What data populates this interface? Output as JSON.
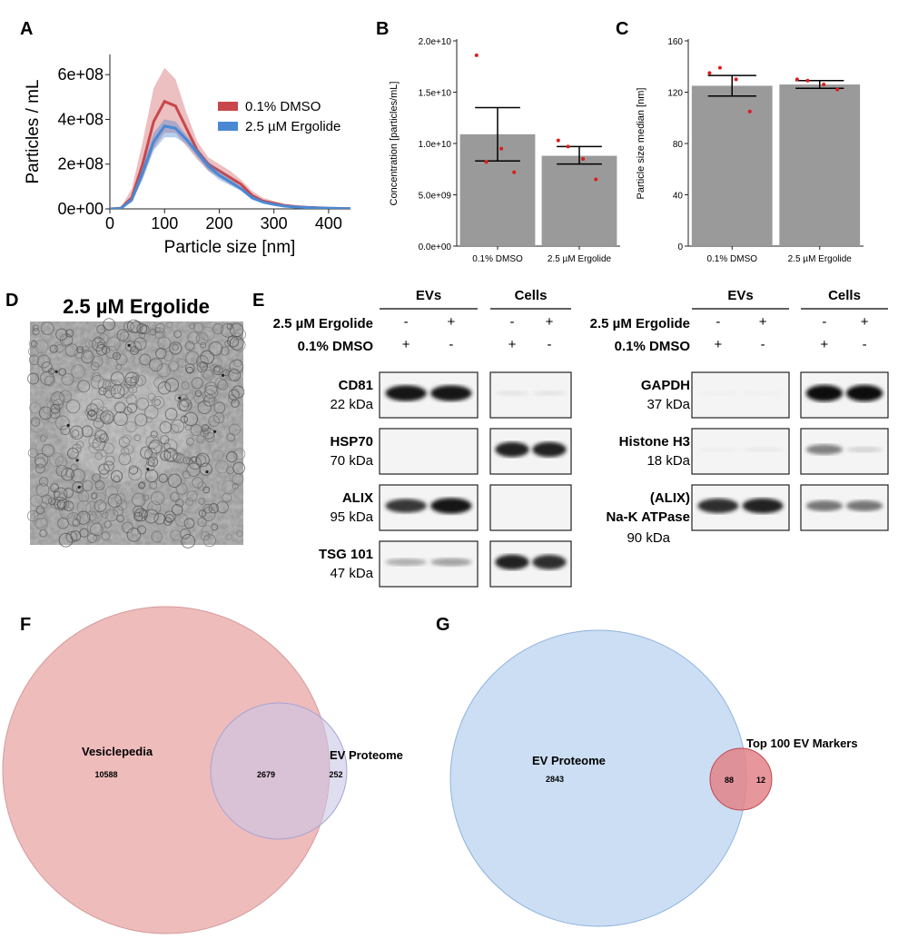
{
  "panels": {
    "A": {
      "letter": "A"
    },
    "B": {
      "letter": "B"
    },
    "C": {
      "letter": "C"
    },
    "D": {
      "letter": "D",
      "title": "2.5 µM Ergolide"
    },
    "E": {
      "letter": "E"
    },
    "F": {
      "letter": "F"
    },
    "G": {
      "letter": "G"
    }
  },
  "colors": {
    "dmso": "#c8474b",
    "ergolide": "#4a88d4",
    "bar": "#9a9a9a",
    "dot": "#e01b1b",
    "venn_vesiclepedia": "#eaa5a5",
    "venn_ev_proteome_f": "#c9c6e6",
    "venn_ev_proteome_g": "#a9c8ec",
    "venn_top100": "#e3848a"
  },
  "chart_data": [
    {
      "id": "A",
      "type": "line",
      "xlabel": "Particle size [nm]",
      "ylabel": "Particles / mL",
      "xlim": [
        0,
        440
      ],
      "ylim": [
        0,
        690000000.0
      ],
      "xticks": [
        0,
        100,
        200,
        300,
        400
      ],
      "yticks": [
        0,
        200000000.0,
        400000000.0,
        600000000.0
      ],
      "ytick_labels": [
        "0e+00",
        "2e+08",
        "4e+08",
        "6e+08"
      ],
      "legend_position": "top-right",
      "series": [
        {
          "name": "0.1% DMSO",
          "color_key": "dmso",
          "x": [
            0,
            20,
            40,
            60,
            80,
            100,
            120,
            140,
            160,
            180,
            200,
            220,
            240,
            260,
            280,
            300,
            320,
            340,
            360,
            380,
            400,
            420,
            440
          ],
          "y": [
            0,
            3000000.0,
            50000000.0,
            200000000.0,
            390000000.0,
            480000000.0,
            460000000.0,
            360000000.0,
            260000000.0,
            200000000.0,
            170000000.0,
            140000000.0,
            110000000.0,
            60000000.0,
            35000000.0,
            25000000.0,
            15000000.0,
            10000000.0,
            7000000.0,
            5000000.0,
            3000000.0,
            2000000.0,
            1000000.0
          ],
          "upper": [
            0,
            5000000.0,
            90000000.0,
            300000000.0,
            540000000.0,
            630000000.0,
            580000000.0,
            430000000.0,
            300000000.0,
            230000000.0,
            200000000.0,
            170000000.0,
            130000000.0,
            80000000.0,
            50000000.0,
            35000000.0,
            22000000.0,
            15000000.0,
            10000000.0,
            7000000.0,
            5000000.0,
            3000000.0,
            2000000.0
          ],
          "lower": [
            0,
            1000000.0,
            30000000.0,
            140000000.0,
            270000000.0,
            340000000.0,
            340000000.0,
            280000000.0,
            220000000.0,
            170000000.0,
            140000000.0,
            110000000.0,
            90000000.0,
            45000000.0,
            25000000.0,
            17000000.0,
            10000000.0,
            6000000.0,
            4000000.0,
            3000000.0,
            2000000.0,
            1000000.0,
            0
          ]
        },
        {
          "name": "2.5 µM Ergolide",
          "color_key": "ergolide",
          "x": [
            0,
            20,
            40,
            60,
            80,
            100,
            120,
            140,
            160,
            180,
            200,
            220,
            240,
            260,
            280,
            300,
            320,
            340,
            360,
            380,
            400,
            420,
            440
          ],
          "y": [
            0,
            2000000.0,
            40000000.0,
            160000000.0,
            300000000.0,
            370000000.0,
            360000000.0,
            310000000.0,
            250000000.0,
            190000000.0,
            150000000.0,
            120000000.0,
            90000000.0,
            50000000.0,
            30000000.0,
            20000000.0,
            12000000.0,
            8000000.0,
            6000000.0,
            4000000.0,
            3000000.0,
            2000000.0,
            1000000.0
          ],
          "upper": [
            0,
            3000000.0,
            50000000.0,
            190000000.0,
            340000000.0,
            400000000.0,
            390000000.0,
            330000000.0,
            270000000.0,
            210000000.0,
            170000000.0,
            135000000.0,
            100000000.0,
            60000000.0,
            35000000.0,
            25000000.0,
            15000000.0,
            10000000.0,
            7000000.0,
            5000000.0,
            4000000.0,
            3000000.0,
            2000000.0
          ],
          "lower": [
            0,
            1000000.0,
            30000000.0,
            130000000.0,
            260000000.0,
            320000000.0,
            320000000.0,
            290000000.0,
            230000000.0,
            170000000.0,
            130000000.0,
            105000000.0,
            80000000.0,
            40000000.0,
            25000000.0,
            15000000.0,
            9000000.0,
            6000000.0,
            5000000.0,
            3000000.0,
            2000000.0,
            1000000.0,
            0
          ]
        }
      ]
    },
    {
      "id": "B",
      "type": "bar",
      "categories": [
        "0.1% DMSO",
        "2.5 µM Ergolide"
      ],
      "values": [
        10900000000.0,
        8800000000.0
      ],
      "error_upper": [
        13500000000.0,
        9700000000.0
      ],
      "error_lower": [
        8300000000.0,
        8000000000.0
      ],
      "points": [
        [
          18600000000.0,
          8200000000.0,
          9500000000.0,
          7200000000.0
        ],
        [
          10300000000.0,
          9700000000.0,
          8500000000.0,
          6500000000.0
        ]
      ],
      "ylabel": "Concentration [particles/mL]",
      "ylim": [
        0,
        20000000000.0
      ],
      "yticks": [
        0,
        5000000000.0,
        10000000000.0,
        15000000000.0,
        20000000000.0
      ],
      "ytick_labels": [
        "0.0e+00",
        "5.0e+09",
        "1.0e+10",
        "1.5e+10",
        "2.0e+10"
      ]
    },
    {
      "id": "C",
      "type": "bar",
      "categories": [
        "0.1% DMSO",
        "2.5 µM Ergolide"
      ],
      "values": [
        125,
        126
      ],
      "error_upper": [
        133,
        129
      ],
      "error_lower": [
        117,
        123
      ],
      "points": [
        [
          135,
          139,
          130,
          105
        ],
        [
          130,
          129,
          126,
          122
        ]
      ],
      "ylabel": "Particle size median [nm]",
      "ylim": [
        0,
        160
      ],
      "yticks": [
        0,
        40,
        80,
        120,
        160
      ],
      "ytick_labels": [
        "0",
        "40",
        "80",
        "120",
        "160"
      ]
    }
  ],
  "western": {
    "left": {
      "groups": [
        "EVs",
        "Cells"
      ],
      "treatments": [
        {
          "label": "2.5 µM Ergolide",
          "signs": [
            "-",
            "+",
            "-",
            "+"
          ]
        },
        {
          "label": "0.1% DMSO",
          "signs": [
            "+",
            "-",
            "+",
            "-"
          ]
        }
      ],
      "blots": [
        {
          "name": "CD81",
          "kda": "22 kDa",
          "ev": [
            0.95,
            0.95
          ],
          "cells": [
            0.08,
            0.08
          ]
        },
        {
          "name": "HSP70",
          "kda": "70 kDa",
          "ev": [
            0,
            0
          ],
          "cells": [
            0.9,
            0.9
          ]
        },
        {
          "name": "ALIX",
          "kda": "95 kDa",
          "ev": [
            0.8,
            0.95
          ],
          "cells": [
            0,
            0
          ]
        },
        {
          "name": "TSG 101",
          "kda": "47 kDa",
          "ev": [
            0.3,
            0.35
          ],
          "cells": [
            0.9,
            0.85
          ]
        }
      ]
    },
    "right": {
      "groups": [
        "EVs",
        "Cells"
      ],
      "treatments": [
        {
          "label": "2.5 µM Ergolide",
          "signs": [
            "-",
            "+",
            "-",
            "+"
          ]
        },
        {
          "label": "0.1% DMSO",
          "signs": [
            "+",
            "-",
            "+",
            "-"
          ]
        }
      ],
      "blots": [
        {
          "name": "GAPDH",
          "kda": "37 kDa",
          "ev": [
            0.03,
            0.03
          ],
          "cells": [
            1.0,
            1.0
          ]
        },
        {
          "name": "Histone H3",
          "kda": "18 kDa",
          "ev": [
            0.04,
            0.06
          ],
          "cells": [
            0.5,
            0.15
          ]
        },
        {
          "name": "(ALIX)",
          "name2": "Na-K ATPase",
          "kda": "90 kDa",
          "ev": [
            0.85,
            0.9
          ],
          "cells": [
            0.55,
            0.55
          ]
        }
      ]
    }
  },
  "venn_f": {
    "left_label": "Vesiclepedia",
    "left_only": "10588",
    "intersection": "2679",
    "right_label": "EV Proteome",
    "right_only": "252"
  },
  "venn_g": {
    "left_label": "EV Proteome",
    "left_only": "2843",
    "intersection": "88",
    "right_label": "Top 100 EV Markers",
    "right_only": "12"
  }
}
